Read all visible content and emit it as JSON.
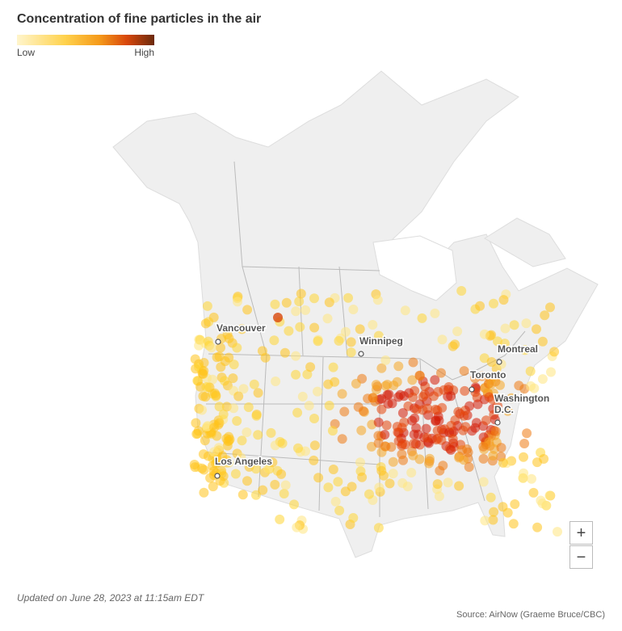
{
  "header": {
    "title": "Concentration of fine particles in the air"
  },
  "legend": {
    "low": "Low",
    "high": "High"
  },
  "cities": [
    {
      "label_lines": [
        "Vancouver"
      ]
    },
    {
      "label_lines": [
        "Winnipeg"
      ]
    },
    {
      "label_lines": [
        "Montreal"
      ]
    },
    {
      "label_lines": [
        "Toronto"
      ]
    },
    {
      "label_lines": [
        "Washington",
        "D.C."
      ]
    },
    {
      "label_lines": [
        "Los Angeles"
      ]
    }
  ],
  "zoom": {
    "in": "+",
    "out": "−"
  },
  "footer": {
    "updated": "Updated on June 28, 2023 at 11:15am EDT",
    "source": "Source: AirNow (Graeme Bruce/CBC)"
  }
}
